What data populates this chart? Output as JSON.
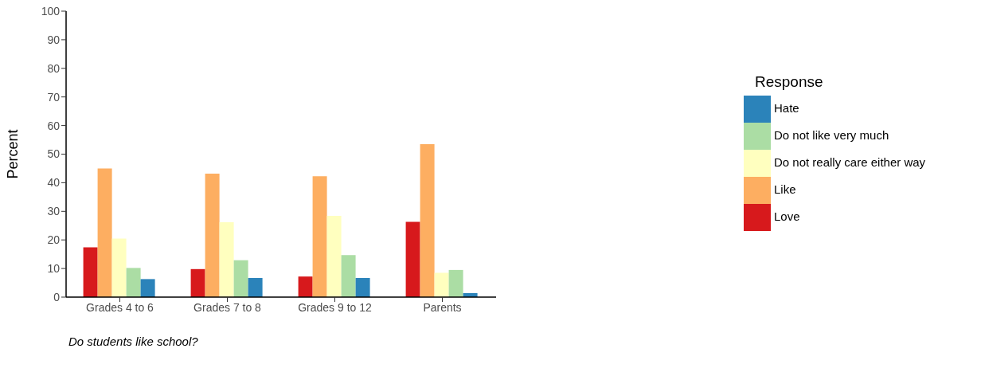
{
  "chart_data": {
    "type": "bar",
    "ylabel": "Percent",
    "legend_title": "Response",
    "categories": [
      "Grades 4 to 6",
      "Grades 7 to 8",
      "Grades 9 to 12",
      "Parents"
    ],
    "series": [
      {
        "name": "Love",
        "color": "#d7191c",
        "values": [
          17.4,
          9.8,
          7.2,
          26.3
        ]
      },
      {
        "name": "Like",
        "color": "#fdae61",
        "values": [
          45.0,
          43.2,
          42.3,
          53.5
        ]
      },
      {
        "name": "Do not really care either way",
        "color": "#ffffbf",
        "values": [
          20.5,
          26.2,
          28.4,
          8.5
        ]
      },
      {
        "name": "Do not like very much",
        "color": "#abdda4",
        "values": [
          10.2,
          12.9,
          14.7,
          9.5
        ]
      },
      {
        "name": "Hate",
        "color": "#2b83ba",
        "values": [
          6.3,
          6.7,
          6.7,
          1.4
        ]
      }
    ],
    "ylim": [
      0,
      100
    ],
    "yticks": [
      0,
      10,
      20,
      30,
      40,
      50,
      60,
      70,
      80,
      90,
      100
    ],
    "grid": false,
    "legend": "right",
    "annotations": [
      "Do students like school?"
    ]
  }
}
